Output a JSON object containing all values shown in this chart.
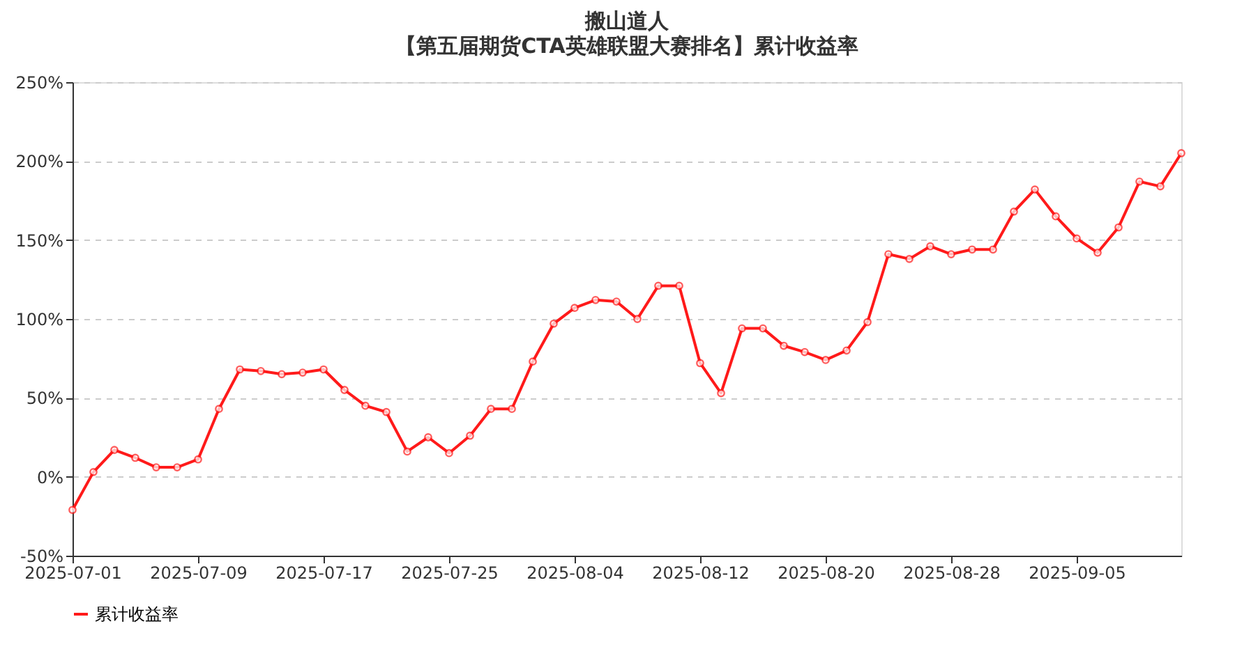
{
  "chart_data": {
    "type": "line",
    "title": "搬山道人",
    "subtitle": "【第五届期货CTA英雄联盟大赛排名】累计收益率",
    "categories": [
      "2025-07-01",
      null,
      null,
      null,
      null,
      null,
      "2025-07-09",
      null,
      null,
      null,
      null,
      null,
      "2025-07-17",
      null,
      null,
      null,
      null,
      null,
      "2025-07-25",
      null,
      null,
      null,
      null,
      null,
      "2025-08-04",
      null,
      null,
      null,
      null,
      null,
      "2025-08-12",
      null,
      null,
      null,
      null,
      null,
      "2025-08-20",
      null,
      null,
      null,
      null,
      null,
      "2025-08-28",
      null,
      null,
      null,
      null,
      null,
      "2025-09-05",
      null,
      null,
      null,
      null,
      null
    ],
    "series": [
      {
        "name": "累计收益率",
        "color": "#ff1a1a",
        "values": [
          -21,
          3,
          17,
          12,
          6,
          6,
          11,
          43,
          68,
          67,
          65,
          66,
          68,
          55,
          45,
          41,
          16,
          25,
          15,
          26,
          43,
          43,
          73,
          97,
          107,
          112,
          111,
          100,
          121,
          121,
          72,
          53,
          94,
          94,
          83,
          79,
          74,
          80,
          98,
          141,
          138,
          146,
          141,
          144,
          144,
          168,
          182,
          165,
          151,
          142,
          158,
          187,
          184,
          205
        ]
      }
    ],
    "ylim": [
      -50,
      250
    ],
    "yticks": [
      {
        "value": -50,
        "label": "-50%"
      },
      {
        "value": 0,
        "label": "0%"
      },
      {
        "value": 50,
        "label": "50%"
      },
      {
        "value": 100,
        "label": "100%"
      },
      {
        "value": 150,
        "label": "150%"
      },
      {
        "value": 200,
        "label": "200%"
      },
      {
        "value": 250,
        "label": "250%"
      }
    ],
    "grid": "y",
    "legend": "bottom",
    "marker": "circle",
    "line_style": "solid"
  }
}
